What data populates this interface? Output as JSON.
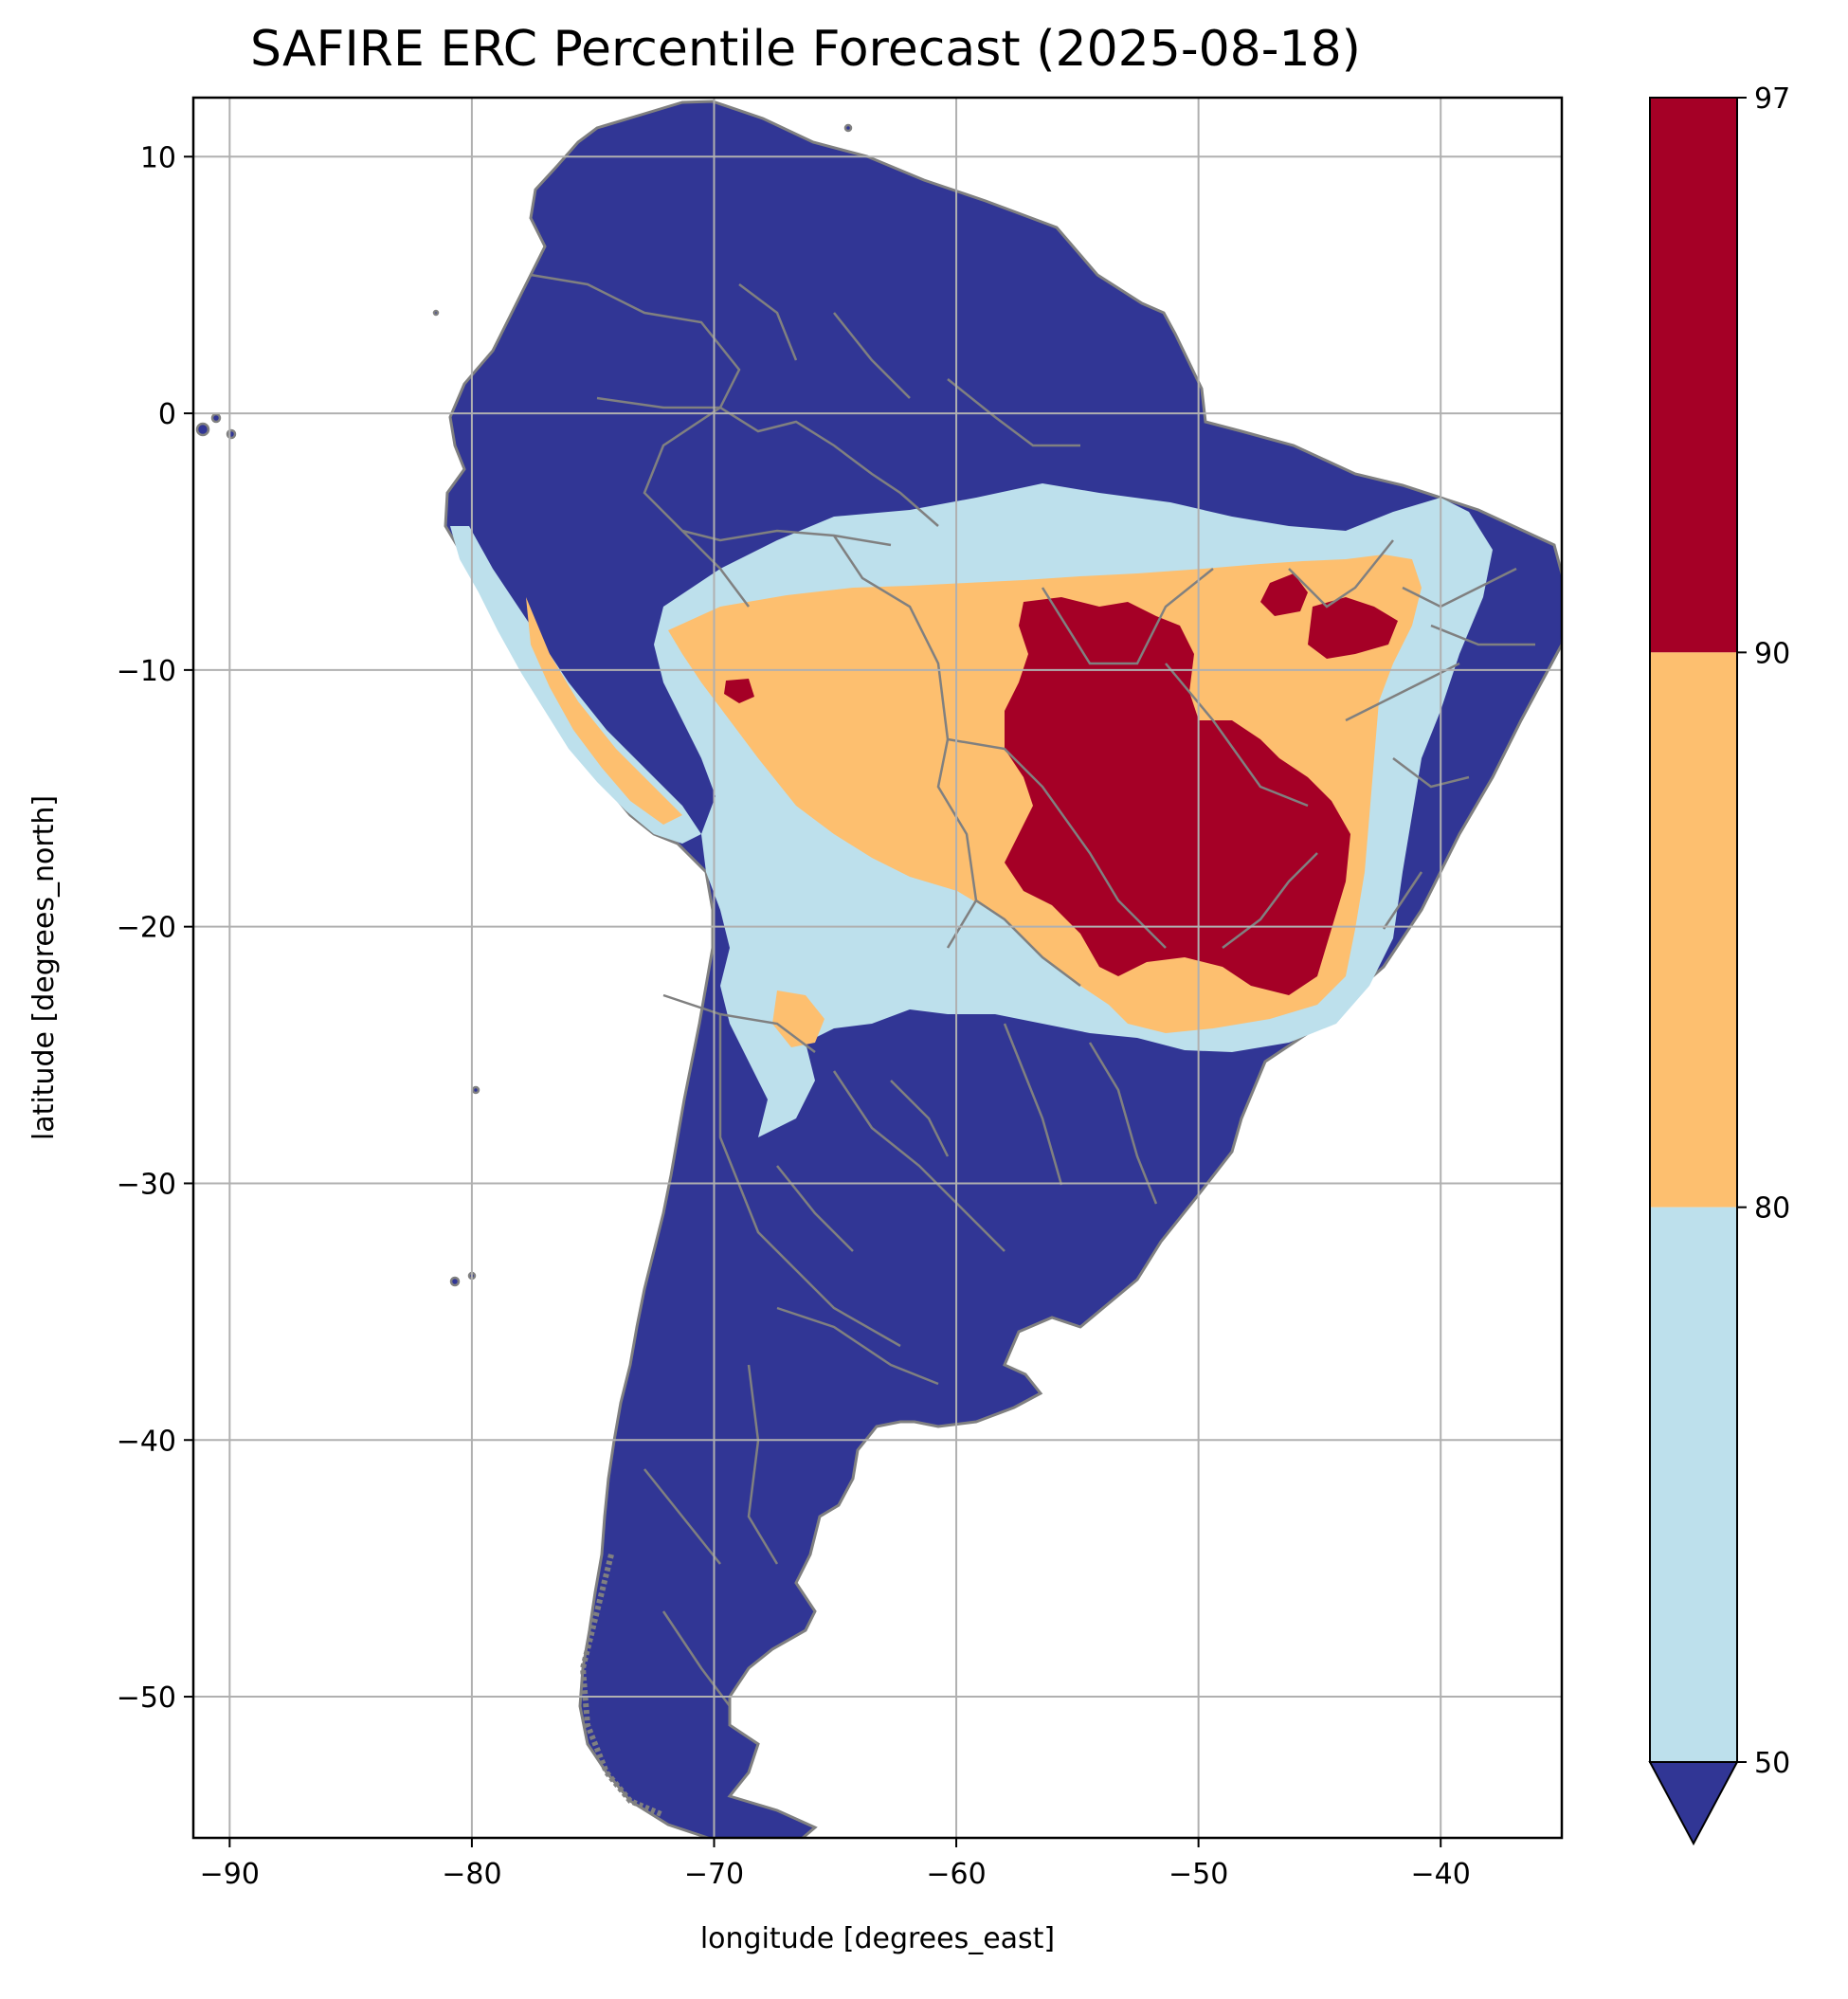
{
  "title": "SAFIRE ERC Percentile Forecast (2025-08-18)",
  "x_axis": {
    "label": "longitude [degrees_east]",
    "range": [
      -91.5,
      -35
    ],
    "ticks": [
      {
        "value": -90,
        "label": "−90"
      },
      {
        "value": -80,
        "label": "−80"
      },
      {
        "value": -70,
        "label": "−70"
      },
      {
        "value": -60,
        "label": "−60"
      },
      {
        "value": -50,
        "label": "−50"
      },
      {
        "value": -40,
        "label": "−40"
      }
    ]
  },
  "y_axis": {
    "label": "latitude [degrees_north]",
    "range": [
      -55.5,
      12.3
    ],
    "ticks": [
      {
        "value": 10,
        "label": "10"
      },
      {
        "value": 0,
        "label": "0"
      },
      {
        "value": -10,
        "label": "−10"
      },
      {
        "value": -20,
        "label": "−20"
      },
      {
        "value": -30,
        "label": "−30"
      },
      {
        "value": -40,
        "label": "−40"
      },
      {
        "value": -50,
        "label": "−50"
      }
    ]
  },
  "grid": true,
  "colorbar": {
    "position": "right",
    "extend": "min",
    "levels": [
      {
        "from": 90,
        "to": 97,
        "color": "#a50026"
      },
      {
        "from": 80,
        "to": 90,
        "color": "#fdbf6f"
      },
      {
        "from": 50,
        "to": 80,
        "color": "#bde0ec"
      }
    ],
    "under_color": "#313695",
    "ticks": [
      {
        "value": 97,
        "label": "97"
      },
      {
        "value": 90,
        "label": "90"
      },
      {
        "value": 80,
        "label": "80"
      },
      {
        "value": 50,
        "label": "50"
      }
    ]
  },
  "colors": {
    "below_50": "#313695",
    "p50_80": "#bde0ec",
    "p80_90": "#fdbf6f",
    "p90_97": "#a50026",
    "boundaries": "#808080",
    "gridlines": "#b0b0b0"
  },
  "map_layers": [
    "south-america-land-below-50",
    "erc-50-80-band",
    "erc-80-90-band",
    "erc-90-97-hotspots",
    "admin-boundaries"
  ]
}
